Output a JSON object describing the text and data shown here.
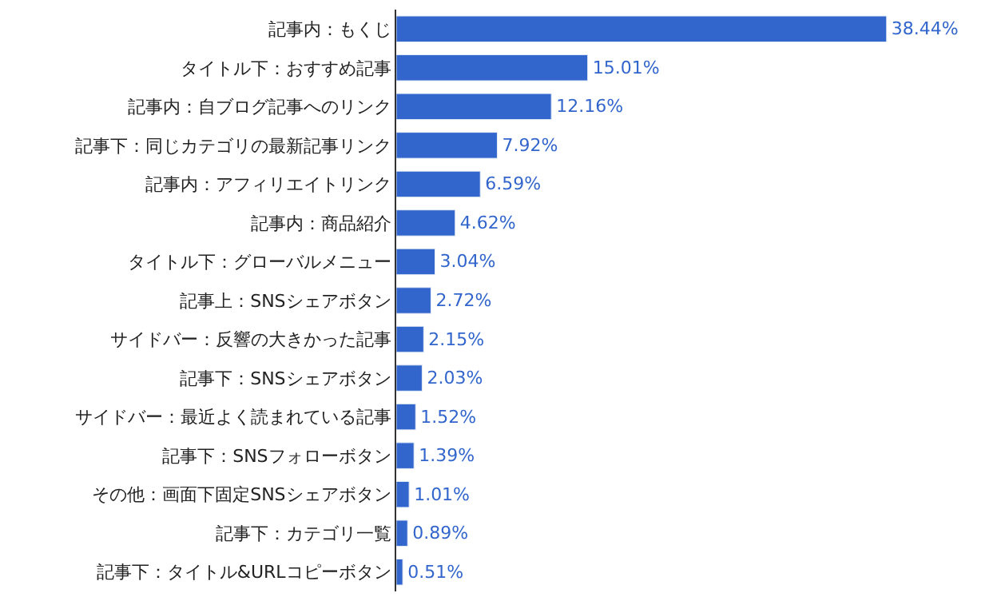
{
  "chart_data": {
    "type": "bar",
    "orientation": "horizontal",
    "categories": [
      "記事内：もくじ",
      "タイトル下：おすすめ記事",
      "記事内：自ブログ記事へのリンク",
      "記事下：同じカテゴリの最新記事リンク",
      "記事内：アフィリエイトリンク",
      "記事内：商品紹介",
      "タイトル下：グローバルメニュー",
      "記事上：SNSシェアボタン",
      "サイドバー：反響の大きかった記事",
      "記事下：SNSシェアボタン",
      "サイドバー：最近よく読まれている記事",
      "記事下：SNSフォローボタン",
      "その他：画面下固定SNSシェアボタン",
      "記事下：カテゴリ一覧",
      "記事下：タイトル&URLコピーボタン"
    ],
    "values": [
      38.44,
      15.01,
      12.16,
      7.92,
      6.59,
      4.62,
      3.04,
      2.72,
      2.15,
      2.03,
      1.52,
      1.39,
      1.01,
      0.89,
      0.51
    ],
    "value_labels": [
      "38.44%",
      "15.01%",
      "12.16%",
      "7.92%",
      "6.59%",
      "4.62%",
      "3.04%",
      "2.72%",
      "2.15%",
      "2.03%",
      "1.52%",
      "1.39%",
      "1.01%",
      "0.89%",
      "0.51%"
    ],
    "color": "#3366cc",
    "legend": false,
    "tick_labels": "y"
  }
}
